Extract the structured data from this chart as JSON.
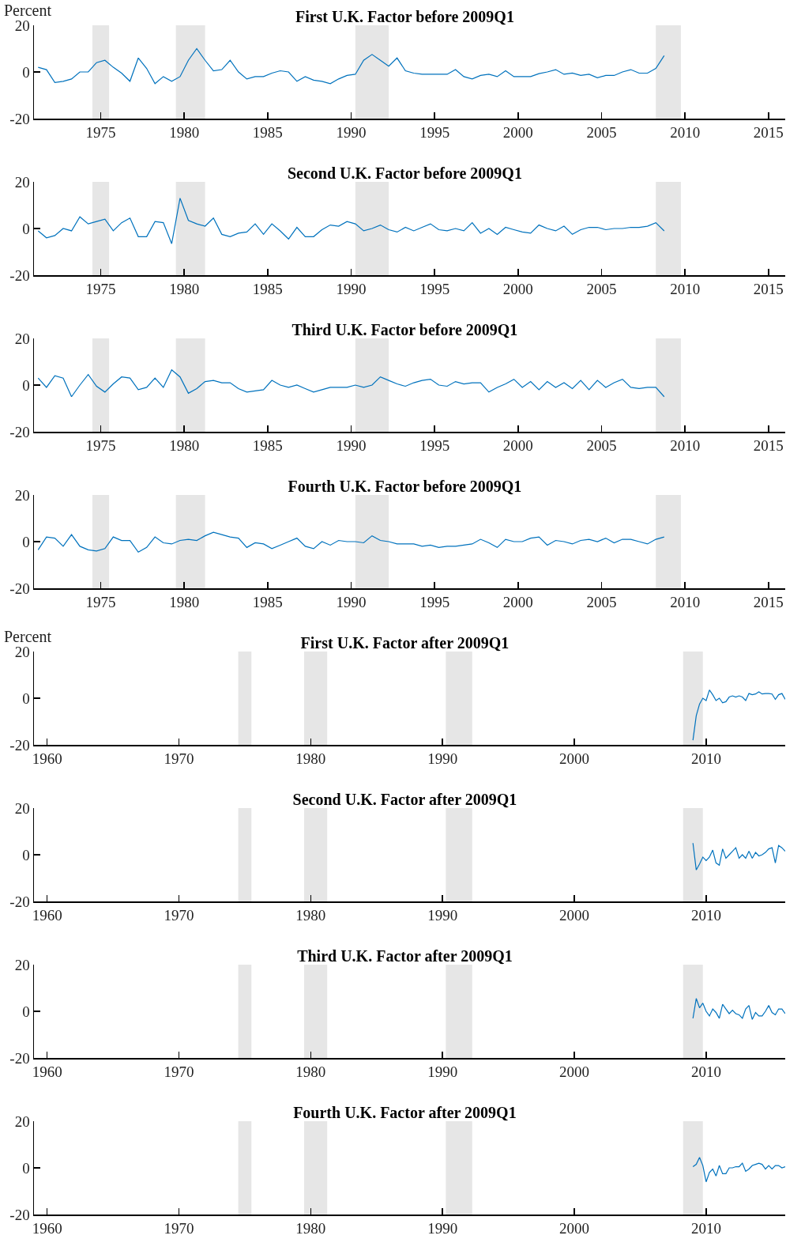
{
  "chart_data": [
    {
      "type": "line",
      "title": "First U.K. Factor before 2009Q1",
      "ylabel": "Percent",
      "xlim": [
        1971,
        2016
      ],
      "xticks": [
        1975,
        1980,
        1985,
        1990,
        1995,
        2000,
        2005,
        2010,
        2015
      ],
      "ylim": [
        -20,
        20
      ],
      "yticks": [
        -20,
        0,
        20
      ],
      "grid": false,
      "bands": [
        {
          "axis": "x",
          "from": 1974.5,
          "to": 1975.5,
          "color": "#e6e6e6"
        },
        {
          "axis": "x",
          "from": 1979.5,
          "to": 1981.25,
          "color": "#e6e6e6"
        },
        {
          "axis": "x",
          "from": 1990.25,
          "to": 1992.25,
          "color": "#e6e6e6"
        },
        {
          "axis": "x",
          "from": 2008.25,
          "to": 2009.75,
          "color": "#e6e6e6"
        }
      ],
      "x": [
        1971.25,
        1971.75,
        1972.25,
        1972.75,
        1973.25,
        1973.75,
        1974.25,
        1974.75,
        1975.25,
        1975.75,
        1976.25,
        1976.75,
        1977.25,
        1977.75,
        1978.25,
        1978.75,
        1979.25,
        1979.75,
        1980.25,
        1980.75,
        1981.25,
        1981.75,
        1982.25,
        1982.75,
        1983.25,
        1983.75,
        1984.25,
        1984.75,
        1985.25,
        1985.75,
        1986.25,
        1986.75,
        1987.25,
        1987.75,
        1988.25,
        1988.75,
        1989.25,
        1989.75,
        1990.25,
        1990.75,
        1991.25,
        1991.75,
        1992.25,
        1992.75,
        1993.25,
        1993.75,
        1994.25,
        1994.75,
        1995.25,
        1995.75,
        1996.25,
        1996.75,
        1997.25,
        1997.75,
        1998.25,
        1998.75,
        1999.25,
        1999.75,
        2000.25,
        2000.75,
        2001.25,
        2001.75,
        2002.25,
        2002.75,
        2003.25,
        2003.75,
        2004.25,
        2004.75,
        2005.25,
        2005.75,
        2006.25,
        2006.75,
        2007.25,
        2007.75,
        2008.25,
        2008.75
      ],
      "series": [
        {
          "color": "#0072bd",
          "values": [
            2,
            1,
            -4.5,
            -4,
            -3,
            0,
            0,
            4,
            5,
            2,
            -0.5,
            -4,
            6,
            1.5,
            -5,
            -2,
            -4,
            -2,
            5,
            10,
            5,
            0.5,
            1,
            5,
            0,
            -3,
            -2,
            -2,
            -0.5,
            0.5,
            0,
            -4,
            -2,
            -3.5,
            -4,
            -5,
            -3,
            -1.5,
            -1,
            5,
            7.5,
            5,
            2.5,
            6,
            0.5,
            -0.5,
            -1,
            -1,
            -1,
            -1,
            1,
            -2,
            -3,
            -1.5,
            -1,
            -2,
            0.5,
            -2,
            -2,
            -2,
            -0.7,
            0,
            1,
            -1,
            -0.5,
            -1.5,
            -1,
            -2.5,
            -1.5,
            -1.5,
            0,
            1,
            -0.5,
            -0.5,
            1.5,
            7
          ]
        }
      ]
    },
    {
      "type": "line",
      "title": "Second U.K. Factor before 2009Q1",
      "xlim": [
        1971,
        2016
      ],
      "xticks": [
        1975,
        1980,
        1985,
        1990,
        1995,
        2000,
        2005,
        2010,
        2015
      ],
      "ylim": [
        -20,
        20
      ],
      "yticks": [
        -20,
        0,
        20
      ],
      "grid": false,
      "bands": [
        {
          "axis": "x",
          "from": 1974.5,
          "to": 1975.5,
          "color": "#e6e6e6"
        },
        {
          "axis": "x",
          "from": 1979.5,
          "to": 1981.25,
          "color": "#e6e6e6"
        },
        {
          "axis": "x",
          "from": 1990.25,
          "to": 1992.25,
          "color": "#e6e6e6"
        },
        {
          "axis": "x",
          "from": 2008.25,
          "to": 2009.75,
          "color": "#e6e6e6"
        }
      ],
      "x": [
        1971.25,
        1971.75,
        1972.25,
        1972.75,
        1973.25,
        1973.75,
        1974.25,
        1974.75,
        1975.25,
        1975.75,
        1976.25,
        1976.75,
        1977.25,
        1977.75,
        1978.25,
        1978.75,
        1979.25,
        1979.75,
        1980.25,
        1980.75,
        1981.25,
        1981.75,
        1982.25,
        1982.75,
        1983.25,
        1983.75,
        1984.25,
        1984.75,
        1985.25,
        1985.75,
        1986.25,
        1986.75,
        1987.25,
        1987.75,
        1988.25,
        1988.75,
        1989.25,
        1989.75,
        1990.25,
        1990.75,
        1991.25,
        1991.75,
        1992.25,
        1992.75,
        1993.25,
        1993.75,
        1994.25,
        1994.75,
        1995.25,
        1995.75,
        1996.25,
        1996.75,
        1997.25,
        1997.75,
        1998.25,
        1998.75,
        1999.25,
        1999.75,
        2000.25,
        2000.75,
        2001.25,
        2001.75,
        2002.25,
        2002.75,
        2003.25,
        2003.75,
        2004.25,
        2004.75,
        2005.25,
        2005.75,
        2006.25,
        2006.75,
        2007.25,
        2007.75,
        2008.25,
        2008.75
      ],
      "series": [
        {
          "color": "#0072bd",
          "values": [
            -1,
            -4,
            -3,
            0,
            -1,
            5,
            2,
            3,
            4,
            -1,
            2.5,
            4.5,
            -3.5,
            -3.5,
            3,
            2.5,
            -6.5,
            13,
            3.5,
            2,
            1,
            4.5,
            -2.5,
            -3.5,
            -2,
            -1.5,
            2,
            -2.5,
            2,
            -1,
            -4.5,
            0.5,
            -3.5,
            -3.5,
            -0.5,
            1.5,
            1,
            3,
            2,
            -1,
            0,
            1.5,
            -0.5,
            -1.5,
            0.5,
            -1,
            0.5,
            2,
            -0.5,
            -1,
            0,
            -1,
            2.5,
            -2,
            0,
            -2.5,
            0.5,
            -0.5,
            -1.5,
            -2,
            1.5,
            0,
            -1,
            1,
            -2.5,
            -0.5,
            0.5,
            0.5,
            -0.5,
            0,
            0,
            0.5,
            0.5,
            1,
            2.5,
            -1
          ]
        }
      ]
    },
    {
      "type": "line",
      "title": "Third U.K. Factor before 2009Q1",
      "xlim": [
        1971,
        2016
      ],
      "xticks": [
        1975,
        1980,
        1985,
        1990,
        1995,
        2000,
        2005,
        2010,
        2015
      ],
      "ylim": [
        -20,
        20
      ],
      "yticks": [
        -20,
        0,
        20
      ],
      "grid": false,
      "bands": [
        {
          "axis": "x",
          "from": 1974.5,
          "to": 1975.5,
          "color": "#e6e6e6"
        },
        {
          "axis": "x",
          "from": 1979.5,
          "to": 1981.25,
          "color": "#e6e6e6"
        },
        {
          "axis": "x",
          "from": 1990.25,
          "to": 1992.25,
          "color": "#e6e6e6"
        },
        {
          "axis": "x",
          "from": 2008.25,
          "to": 2009.75,
          "color": "#e6e6e6"
        }
      ],
      "x": [
        1971.25,
        1971.75,
        1972.25,
        1972.75,
        1973.25,
        1973.75,
        1974.25,
        1974.75,
        1975.25,
        1975.75,
        1976.25,
        1976.75,
        1977.25,
        1977.75,
        1978.25,
        1978.75,
        1979.25,
        1979.75,
        1980.25,
        1980.75,
        1981.25,
        1981.75,
        1982.25,
        1982.75,
        1983.25,
        1983.75,
        1984.25,
        1984.75,
        1985.25,
        1985.75,
        1986.25,
        1986.75,
        1987.25,
        1987.75,
        1988.25,
        1988.75,
        1989.25,
        1989.75,
        1990.25,
        1990.75,
        1991.25,
        1991.75,
        1992.25,
        1992.75,
        1993.25,
        1993.75,
        1994.25,
        1994.75,
        1995.25,
        1995.75,
        1996.25,
        1996.75,
        1997.25,
        1997.75,
        1998.25,
        1998.75,
        1999.25,
        1999.75,
        2000.25,
        2000.75,
        2001.25,
        2001.75,
        2002.25,
        2002.75,
        2003.25,
        2003.75,
        2004.25,
        2004.75,
        2005.25,
        2005.75,
        2006.25,
        2006.75,
        2007.25,
        2007.75,
        2008.25,
        2008.75
      ],
      "series": [
        {
          "color": "#0072bd",
          "values": [
            3,
            -1,
            4,
            3,
            -5,
            0,
            4.5,
            -0.5,
            -3,
            0.5,
            3.5,
            3,
            -2,
            -1,
            3,
            -1,
            6.5,
            3.5,
            -3.5,
            -1.5,
            1.5,
            2,
            1,
            1,
            -1.5,
            -3,
            -2.5,
            -2,
            2,
            0,
            -1,
            0,
            -1.5,
            -3,
            -2,
            -1,
            -1,
            -1,
            0,
            -1,
            0,
            3.5,
            2,
            0.5,
            -0.5,
            1,
            2,
            2.5,
            0,
            -0.5,
            1.5,
            0.5,
            1,
            1,
            -3,
            -1,
            0.5,
            2.5,
            -1,
            1.5,
            -2,
            1.5,
            -1,
            1,
            -1.5,
            2,
            -2,
            2,
            -1,
            1,
            2.5,
            -1,
            -1.5,
            -1,
            -1,
            -5
          ]
        }
      ]
    },
    {
      "type": "line",
      "title": "Fourth U.K. Factor before 2009Q1",
      "xlim": [
        1971,
        2016
      ],
      "xticks": [
        1975,
        1980,
        1985,
        1990,
        1995,
        2000,
        2005,
        2010,
        2015
      ],
      "ylim": [
        -20,
        20
      ],
      "yticks": [
        -20,
        0,
        20
      ],
      "grid": false,
      "bands": [
        {
          "axis": "x",
          "from": 1974.5,
          "to": 1975.5,
          "color": "#e6e6e6"
        },
        {
          "axis": "x",
          "from": 1979.5,
          "to": 1981.25,
          "color": "#e6e6e6"
        },
        {
          "axis": "x",
          "from": 1990.25,
          "to": 1992.25,
          "color": "#e6e6e6"
        },
        {
          "axis": "x",
          "from": 2008.25,
          "to": 2009.75,
          "color": "#e6e6e6"
        }
      ],
      "x": [
        1971.25,
        1971.75,
        1972.25,
        1972.75,
        1973.25,
        1973.75,
        1974.25,
        1974.75,
        1975.25,
        1975.75,
        1976.25,
        1976.75,
        1977.25,
        1977.75,
        1978.25,
        1978.75,
        1979.25,
        1979.75,
        1980.25,
        1980.75,
        1981.25,
        1981.75,
        1982.25,
        1982.75,
        1983.25,
        1983.75,
        1984.25,
        1984.75,
        1985.25,
        1985.75,
        1986.25,
        1986.75,
        1987.25,
        1987.75,
        1988.25,
        1988.75,
        1989.25,
        1989.75,
        1990.25,
        1990.75,
        1991.25,
        1991.75,
        1992.25,
        1992.75,
        1993.25,
        1993.75,
        1994.25,
        1994.75,
        1995.25,
        1995.75,
        1996.25,
        1996.75,
        1997.25,
        1997.75,
        1998.25,
        1998.75,
        1999.25,
        1999.75,
        2000.25,
        2000.75,
        2001.25,
        2001.75,
        2002.25,
        2002.75,
        2003.25,
        2003.75,
        2004.25,
        2004.75,
        2005.25,
        2005.75,
        2006.25,
        2006.75,
        2007.25,
        2007.75,
        2008.25,
        2008.75
      ],
      "series": [
        {
          "color": "#0072bd",
          "values": [
            -3.5,
            2,
            1.5,
            -2,
            3,
            -2,
            -3.5,
            -4,
            -3,
            2,
            0.5,
            0.5,
            -4.5,
            -2.5,
            2,
            -0.5,
            -1,
            0.5,
            1,
            0.5,
            2.5,
            4,
            3,
            2,
            1.5,
            -2.5,
            -0.5,
            -1,
            -3,
            -1.5,
            0,
            1.5,
            -2,
            -3,
            0,
            -1.5,
            0.5,
            0,
            0,
            -0.5,
            2.5,
            0.5,
            0,
            -1,
            -1,
            -1,
            -2,
            -1.5,
            -2.5,
            -2,
            -2,
            -1.5,
            -1,
            1,
            -0.5,
            -2.5,
            1,
            0,
            0,
            1.5,
            2,
            -1.5,
            0.5,
            0,
            -1,
            0.5,
            1,
            0,
            1.5,
            -0.5,
            1,
            1,
            0,
            -1,
            1,
            2
          ]
        }
      ]
    },
    {
      "type": "line",
      "title": "First U.K. Factor after 2009Q1",
      "ylabel": "Percent",
      "xlim": [
        1959,
        2016
      ],
      "xticks": [
        1960,
        1970,
        1980,
        1990,
        2000,
        2010
      ],
      "ylim": [
        -20,
        20
      ],
      "yticks": [
        -20,
        0,
        20
      ],
      "grid": false,
      "bands": [
        {
          "axis": "x",
          "from": 1974.5,
          "to": 1975.5,
          "color": "#e6e6e6"
        },
        {
          "axis": "x",
          "from": 1979.5,
          "to": 1981.25,
          "color": "#e6e6e6"
        },
        {
          "axis": "x",
          "from": 1990.25,
          "to": 1992.25,
          "color": "#e6e6e6"
        },
        {
          "axis": "x",
          "from": 2008.25,
          "to": 2009.75,
          "color": "#e6e6e6"
        }
      ],
      "x": [
        2009,
        2009.25,
        2009.5,
        2009.75,
        2010,
        2010.25,
        2010.5,
        2010.75,
        2011,
        2011.25,
        2011.5,
        2011.75,
        2012,
        2012.25,
        2012.5,
        2012.75,
        2013,
        2013.25,
        2013.5,
        2013.75,
        2014,
        2014.25,
        2014.5,
        2014.75,
        2015,
        2015.25,
        2015.5,
        2015.75,
        2016
      ],
      "series": [
        {
          "color": "#0072bd",
          "values": [
            -18,
            -7.5,
            -2.5,
            0,
            -1,
            3.5,
            1.5,
            -1,
            0,
            -2,
            -1.5,
            0.5,
            1,
            0.5,
            1,
            0.5,
            -1,
            2,
            1.5,
            1.8,
            2.7,
            1.8,
            2,
            2,
            1.8,
            -0.5,
            1.5,
            2,
            -0.5
          ]
        }
      ]
    },
    {
      "type": "line",
      "title": "Second U.K. Factor after 2009Q1",
      "xlim": [
        1959,
        2016
      ],
      "xticks": [
        1960,
        1970,
        1980,
        1990,
        2000,
        2010
      ],
      "ylim": [
        -20,
        20
      ],
      "yticks": [
        -20,
        0,
        20
      ],
      "grid": false,
      "bands": [
        {
          "axis": "x",
          "from": 1974.5,
          "to": 1975.5,
          "color": "#e6e6e6"
        },
        {
          "axis": "x",
          "from": 1979.5,
          "to": 1981.25,
          "color": "#e6e6e6"
        },
        {
          "axis": "x",
          "from": 1990.25,
          "to": 1992.25,
          "color": "#e6e6e6"
        },
        {
          "axis": "x",
          "from": 2008.25,
          "to": 2009.75,
          "color": "#e6e6e6"
        }
      ],
      "x": [
        2009,
        2009.25,
        2009.5,
        2009.75,
        2010,
        2010.25,
        2010.5,
        2010.75,
        2011,
        2011.25,
        2011.5,
        2011.75,
        2012,
        2012.25,
        2012.5,
        2012.75,
        2013,
        2013.25,
        2013.5,
        2013.75,
        2014,
        2014.25,
        2014.5,
        2014.75,
        2015,
        2015.25,
        2015.5,
        2015.75,
        2016
      ],
      "series": [
        {
          "color": "#0072bd",
          "values": [
            5,
            -6.5,
            -4,
            -1,
            -2.5,
            -1,
            2,
            -3.5,
            -4.5,
            2.5,
            -1.5,
            0,
            1.5,
            3,
            -1.5,
            0,
            -1.5,
            1.5,
            -1.5,
            1,
            -0.5,
            0,
            1,
            2.5,
            3,
            -3.5,
            4,
            3,
            1.5
          ]
        }
      ]
    },
    {
      "type": "line",
      "title": "Third U.K. Factor after 2009Q1",
      "xlim": [
        1959,
        2016
      ],
      "xticks": [
        1960,
        1970,
        1980,
        1990,
        2000,
        2010
      ],
      "ylim": [
        -20,
        20
      ],
      "yticks": [
        -20,
        0,
        20
      ],
      "grid": false,
      "bands": [
        {
          "axis": "x",
          "from": 1974.5,
          "to": 1975.5,
          "color": "#e6e6e6"
        },
        {
          "axis": "x",
          "from": 1979.5,
          "to": 1981.25,
          "color": "#e6e6e6"
        },
        {
          "axis": "x",
          "from": 1990.25,
          "to": 1992.25,
          "color": "#e6e6e6"
        },
        {
          "axis": "x",
          "from": 2008.25,
          "to": 2009.75,
          "color": "#e6e6e6"
        }
      ],
      "x": [
        2009,
        2009.25,
        2009.5,
        2009.75,
        2010,
        2010.25,
        2010.5,
        2010.75,
        2011,
        2011.25,
        2011.5,
        2011.75,
        2012,
        2012.25,
        2012.5,
        2012.75,
        2013,
        2013.25,
        2013.5,
        2013.75,
        2014,
        2014.25,
        2014.5,
        2014.75,
        2015,
        2015.25,
        2015.5,
        2015.75,
        2016
      ],
      "series": [
        {
          "color": "#0072bd",
          "values": [
            -3,
            5.5,
            1.5,
            3.5,
            0,
            -2,
            1,
            -0.5,
            -3,
            3,
            1,
            -1,
            0.5,
            -1,
            -1.5,
            -3,
            1,
            2.5,
            -3.5,
            -0.5,
            -2,
            -2,
            0,
            2.5,
            -0.5,
            -1.5,
            1,
            1,
            -1
          ]
        }
      ]
    },
    {
      "type": "line",
      "title": "Fourth U.K. Factor after 2009Q1",
      "xlim": [
        1959,
        2016
      ],
      "xticks": [
        1960,
        1970,
        1980,
        1990,
        2000,
        2010
      ],
      "ylim": [
        -20,
        20
      ],
      "yticks": [
        -20,
        0,
        20
      ],
      "grid": false,
      "bands": [
        {
          "axis": "x",
          "from": 1974.5,
          "to": 1975.5,
          "color": "#e6e6e6"
        },
        {
          "axis": "x",
          "from": 1979.5,
          "to": 1981.25,
          "color": "#e6e6e6"
        },
        {
          "axis": "x",
          "from": 1990.25,
          "to": 1992.25,
          "color": "#e6e6e6"
        },
        {
          "axis": "x",
          "from": 2008.25,
          "to": 2009.75,
          "color": "#e6e6e6"
        }
      ],
      "x": [
        2009,
        2009.25,
        2009.5,
        2009.75,
        2010,
        2010.25,
        2010.5,
        2010.75,
        2011,
        2011.25,
        2011.5,
        2011.75,
        2012,
        2012.25,
        2012.5,
        2012.75,
        2013,
        2013.25,
        2013.5,
        2013.75,
        2014,
        2014.25,
        2014.5,
        2014.75,
        2015,
        2015.25,
        2015.5,
        2015.75,
        2016
      ],
      "series": [
        {
          "color": "#0072bd",
          "values": [
            0.5,
            1.5,
            4.5,
            1,
            -6,
            -2,
            -0.5,
            -3.5,
            1,
            -2.5,
            -2.5,
            0,
            0,
            0.5,
            0.5,
            2,
            -1.5,
            -0.5,
            1,
            1.5,
            2,
            1.5,
            -0.5,
            1,
            -0.5,
            1,
            1,
            0,
            0.5
          ]
        }
      ]
    }
  ]
}
